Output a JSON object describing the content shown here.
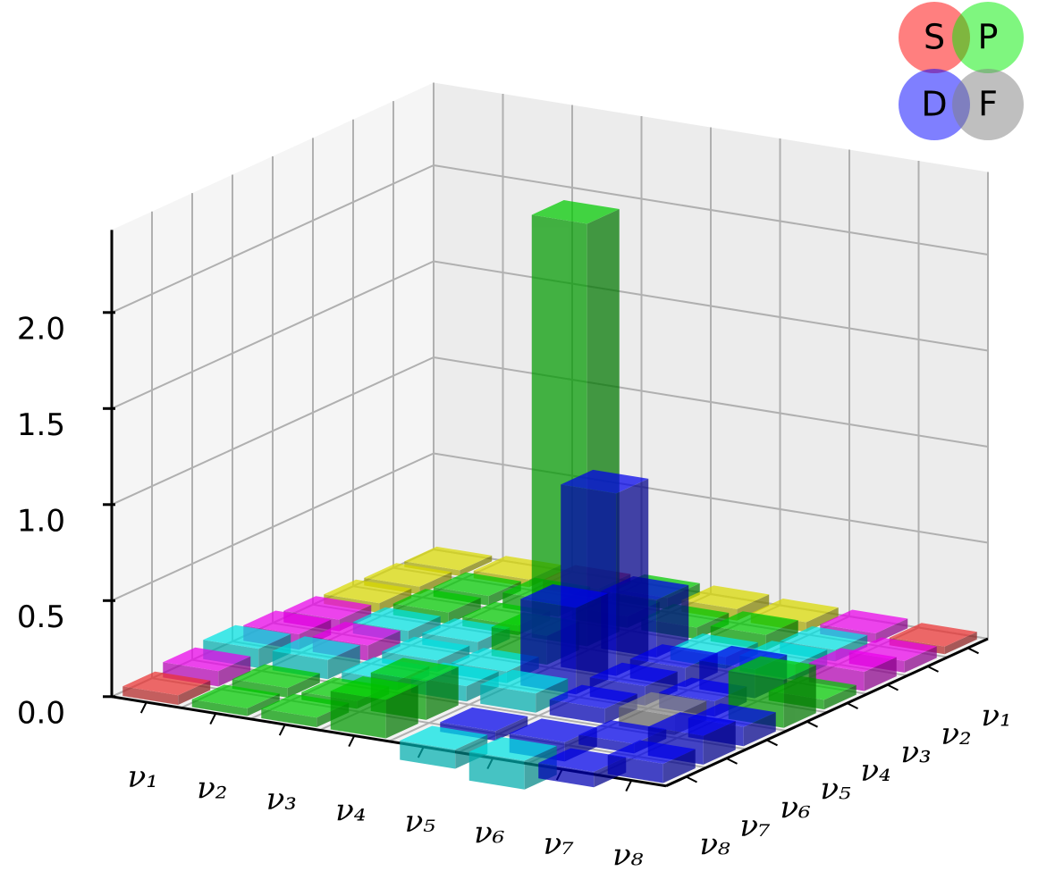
{
  "chart_data": {
    "type": "bar3d",
    "xcategories": [
      "ν₁",
      "ν₂",
      "ν₃",
      "ν₄",
      "ν₅",
      "ν₆",
      "ν₇",
      "ν₈"
    ],
    "ycategories": [
      "ν₁",
      "ν₂",
      "ν₃",
      "ν₄",
      "ν₅",
      "ν₆",
      "ν₇",
      "ν₈"
    ],
    "values": [
      [
        0.03,
        0.04,
        0.05,
        0.06,
        0.08,
        0.1,
        0.08,
        0.05
      ],
      [
        0.04,
        0.05,
        0.06,
        0.06,
        0.08,
        0.1,
        0.05,
        0.04
      ],
      [
        0.05,
        0.08,
        0.05,
        0.06,
        0.06,
        0.05,
        0.04,
        0.05
      ],
      [
        0.06,
        0.06,
        2.2,
        0.15,
        0.06,
        0.08,
        0.2,
        0.2
      ],
      [
        0.06,
        0.06,
        0.3,
        0.95,
        0.45,
        0.1,
        -0.05,
        -0.1
      ],
      [
        0.05,
        0.08,
        0.06,
        0.1,
        0.1,
        0.08,
        -0.1,
        -0.15
      ],
      [
        0.05,
        0.06,
        0.08,
        0.15,
        0.08,
        0.1,
        0.05,
        -0.08
      ],
      [
        0.04,
        0.06,
        0.1,
        0.05,
        0.25,
        0.1,
        0.15,
        0.1
      ]
    ],
    "colors": [
      [
        "#d0d000",
        "#d0d000",
        "#d0d000",
        "#e000e0",
        "#e000e0",
        "#00d8d8",
        "#e000e0",
        "#e03030"
      ],
      [
        "#d0d000",
        "#00c000",
        "#00c000",
        "#00d8d8",
        "#e000e0",
        "#00d8d8",
        "#00c000",
        "#00c000"
      ],
      [
        "#e03030",
        "#00c000",
        "#00c000",
        "#00d8d8",
        "#00d8d8",
        "#00d8d8",
        "#00c000",
        "#00c000"
      ],
      [
        "#00c000",
        "#00c000",
        "#00c000",
        "#00c000",
        "#00d8d8",
        "#00d8d8",
        "#00c000",
        "#00c000"
      ],
      [
        "#d0d000",
        "#00c000",
        "#0000e0",
        "#0000e0",
        "#0000e0",
        "#00d8d8",
        "#0000e0",
        "#00d8d8"
      ],
      [
        "#d0d000",
        "#00c000",
        "#00d8d8",
        "#0000e0",
        "#0000e0",
        "#0000e0",
        "#0000e0",
        "#00d8d8"
      ],
      [
        "#e000e0",
        "#00d8d8",
        "#00d8d8",
        "#0000e0",
        "#0000e0",
        "#808080",
        "#0000e0",
        "#0000e0"
      ],
      [
        "#e03030",
        "#e000e0",
        "#e000e0",
        "#00c000",
        "#00c000",
        "#0000e0",
        "#0000e0",
        "#0000e0"
      ]
    ],
    "zlim": [
      0,
      2.43
    ],
    "zticks": [
      {
        "value": 0,
        "label": "0.0"
      },
      {
        "value": 0.5,
        "label": "0.5"
      },
      {
        "value": 1,
        "label": "1.0"
      },
      {
        "value": 1.5,
        "label": "1.5"
      },
      {
        "value": 2,
        "label": "2.0"
      }
    ],
    "grid": true,
    "legend": [
      {
        "label": "S",
        "color": "#ff0000"
      },
      {
        "label": "P",
        "color": "#00ee00"
      },
      {
        "label": "D",
        "color": "#0000ff"
      },
      {
        "label": "F",
        "color": "#808080"
      }
    ]
  }
}
